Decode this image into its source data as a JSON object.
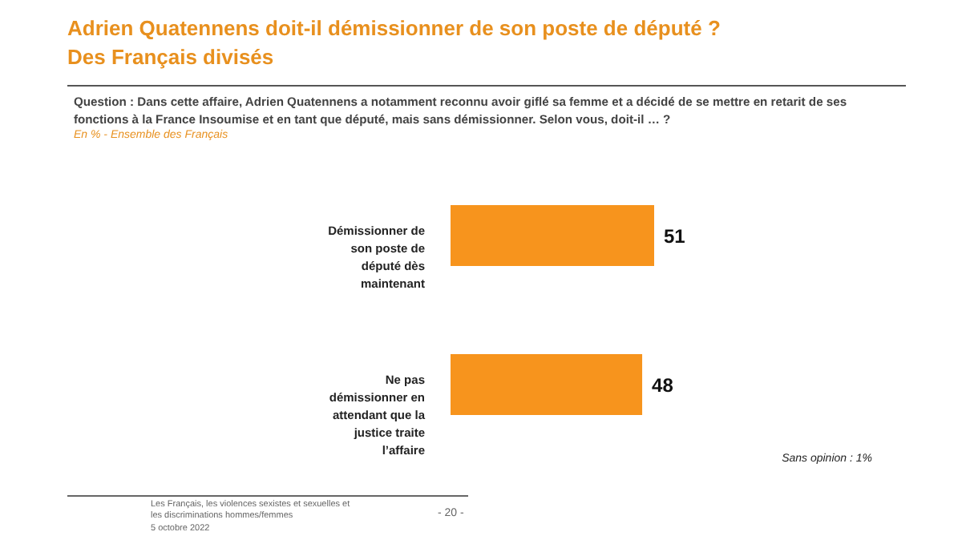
{
  "chart_data": {
    "type": "bar",
    "orientation": "horizontal",
    "title": "Adrien Quatennens doit-il démissionner de son poste de député ?",
    "subtitle": "Des Français divisés",
    "categories": [
      "Démissionner de son poste de député dès maintenant",
      "Ne pas démissionner en attendant que la justice traite l’affaire"
    ],
    "values": [
      51,
      48
    ],
    "color": "#f7941d",
    "data_labels": true,
    "annotations": [
      "Question : Dans cette affaire, Adrien Quatennens a notamment reconnu avoir giflé sa femme et a décidé de se mettre en retarit de ses fonctions à la France Insoumise et en tant que député, mais sans démissionner. Selon vous, doit-il … ?",
      "En % - Ensemble des Français",
      "Sans opinion : 1%",
      "Les Français, les violences sexistes et sexuelles et les discriminations hommes/femmes",
      "5 octobre 2022",
      "- 20 -"
    ]
  }
}
